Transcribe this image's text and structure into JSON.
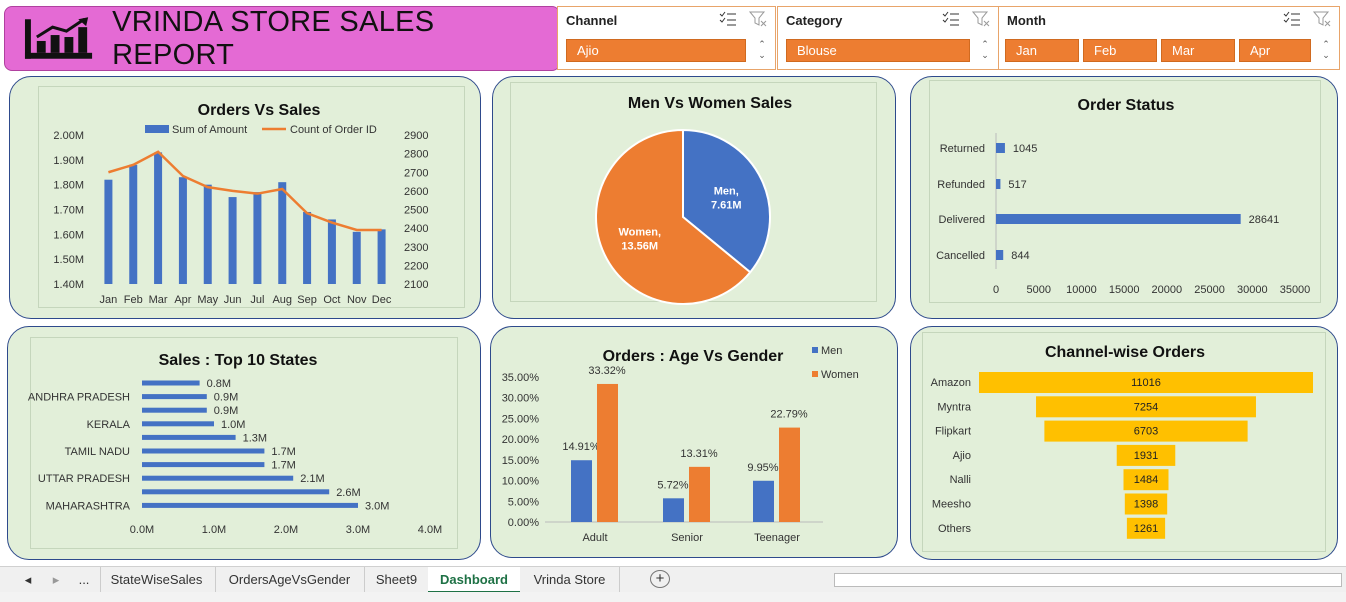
{
  "header": {
    "title": "VRINDA STORE SALES REPORT"
  },
  "slicers": {
    "channel": {
      "label": "Channel",
      "options": [
        "Ajio"
      ]
    },
    "category": {
      "label": "Category",
      "options": [
        "Blouse"
      ]
    },
    "month": {
      "label": "Month",
      "options": [
        "Jan",
        "Feb",
        "Mar",
        "Apr"
      ]
    }
  },
  "tabs": {
    "nav_prev": "◂",
    "nav_next": "▸",
    "ellipsis": "...",
    "sheets": [
      "StateWiseSales",
      "OrdersAgeVsGender",
      "Sheet9",
      "Dashboard",
      "Vrinda Store"
    ],
    "active": "Dashboard",
    "add": "+"
  },
  "colors": {
    "blue": "#4472c4",
    "orange": "#ed7d31",
    "gold": "#ffc000",
    "panel": "#e2efd9",
    "header": "#e46ad4"
  },
  "chart_data": [
    {
      "id": "orders-vs-sales",
      "type": "bar",
      "title": "Orders Vs Sales",
      "categories": [
        "Jan",
        "Feb",
        "Mar",
        "Apr",
        "May",
        "Jun",
        "Jul",
        "Aug",
        "Sep",
        "Oct",
        "Nov",
        "Dec"
      ],
      "series": [
        {
          "name": "Sum of Amount",
          "type": "bar",
          "axis": "left",
          "values": [
            1.82,
            1.88,
            1.93,
            1.83,
            1.8,
            1.75,
            1.77,
            1.81,
            1.69,
            1.66,
            1.61,
            1.62
          ]
        },
        {
          "name": "Count of Order ID",
          "type": "line",
          "axis": "right",
          "values": [
            2700,
            2740,
            2810,
            2680,
            2620,
            2600,
            2585,
            2610,
            2480,
            2430,
            2390,
            2390
          ]
        }
      ],
      "y_left": {
        "min": 1.4,
        "max": 2.0,
        "ticks": [
          "1.40M",
          "1.50M",
          "1.60M",
          "1.70M",
          "1.80M",
          "1.90M",
          "2.00M"
        ]
      },
      "y_right": {
        "min": 2100,
        "max": 2900,
        "ticks": [
          "2100",
          "2200",
          "2300",
          "2400",
          "2500",
          "2600",
          "2700",
          "2800",
          "2900"
        ]
      },
      "legend": "top"
    },
    {
      "id": "men-vs-women",
      "type": "pie",
      "title": "Men Vs Women Sales",
      "slices": [
        {
          "label": "Men,",
          "display": "7.61M",
          "value": 7.61,
          "color": "#4472c4"
        },
        {
          "label": "Women,",
          "display": "13.56M",
          "value": 13.56,
          "color": "#ed7d31"
        }
      ]
    },
    {
      "id": "order-status",
      "type": "bar",
      "orientation": "horizontal",
      "title": "Order Status",
      "categories": [
        "Returned",
        "Refunded",
        "Delivered",
        "Cancelled"
      ],
      "values": [
        1045,
        517,
        28641,
        844
      ],
      "x_ticks": [
        "0",
        "5000",
        "10000",
        "15000",
        "20000",
        "25000",
        "30000",
        "35000"
      ],
      "xlim": [
        0,
        35000
      ]
    },
    {
      "id": "top-states",
      "type": "bar",
      "orientation": "horizontal",
      "title": "Sales : Top 10 States",
      "category_labels": [
        "",
        "ANDHRA PRADESH",
        "",
        "KERALA",
        "",
        "TAMIL NADU",
        "",
        "UTTAR PRADESH",
        "",
        "MAHARASHTRA"
      ],
      "values": [
        0.8,
        0.9,
        0.9,
        1.0,
        1.3,
        1.7,
        1.7,
        2.1,
        2.6,
        3.0
      ],
      "value_labels": [
        "0.8M",
        "0.9M",
        "0.9M",
        "1.0M",
        "1.3M",
        "1.7M",
        "1.7M",
        "2.1M",
        "2.6M",
        "3.0M"
      ],
      "x_ticks": [
        "0.0M",
        "1.0M",
        "2.0M",
        "3.0M",
        "4.0M"
      ],
      "xlim": [
        0,
        4
      ]
    },
    {
      "id": "age-vs-gender",
      "type": "bar",
      "title": "Orders : Age Vs Gender",
      "categories": [
        "Adult",
        "Senior",
        "Teenager"
      ],
      "series": [
        {
          "name": "Men",
          "values": [
            14.91,
            5.72,
            9.95
          ],
          "labels": [
            "14.91%",
            "5.72%",
            "9.95%"
          ]
        },
        {
          "name": "Women",
          "values": [
            33.32,
            13.31,
            22.79
          ],
          "labels": [
            "33.32%",
            "13.31%",
            "22.79%"
          ]
        }
      ],
      "y_ticks": [
        "0.00%",
        "5.00%",
        "10.00%",
        "15.00%",
        "20.00%",
        "25.00%",
        "30.00%",
        "35.00%"
      ],
      "ylim": [
        0,
        35
      ],
      "legend": "top-right"
    },
    {
      "id": "channel-orders",
      "type": "funnel",
      "title": "Channel-wise Orders",
      "categories": [
        "Amazon",
        "Myntra",
        "Flipkart",
        "Ajio",
        "Nalli",
        "Meesho",
        "Others"
      ],
      "values": [
        11016,
        7254,
        6703,
        1931,
        1484,
        1398,
        1261
      ]
    }
  ]
}
